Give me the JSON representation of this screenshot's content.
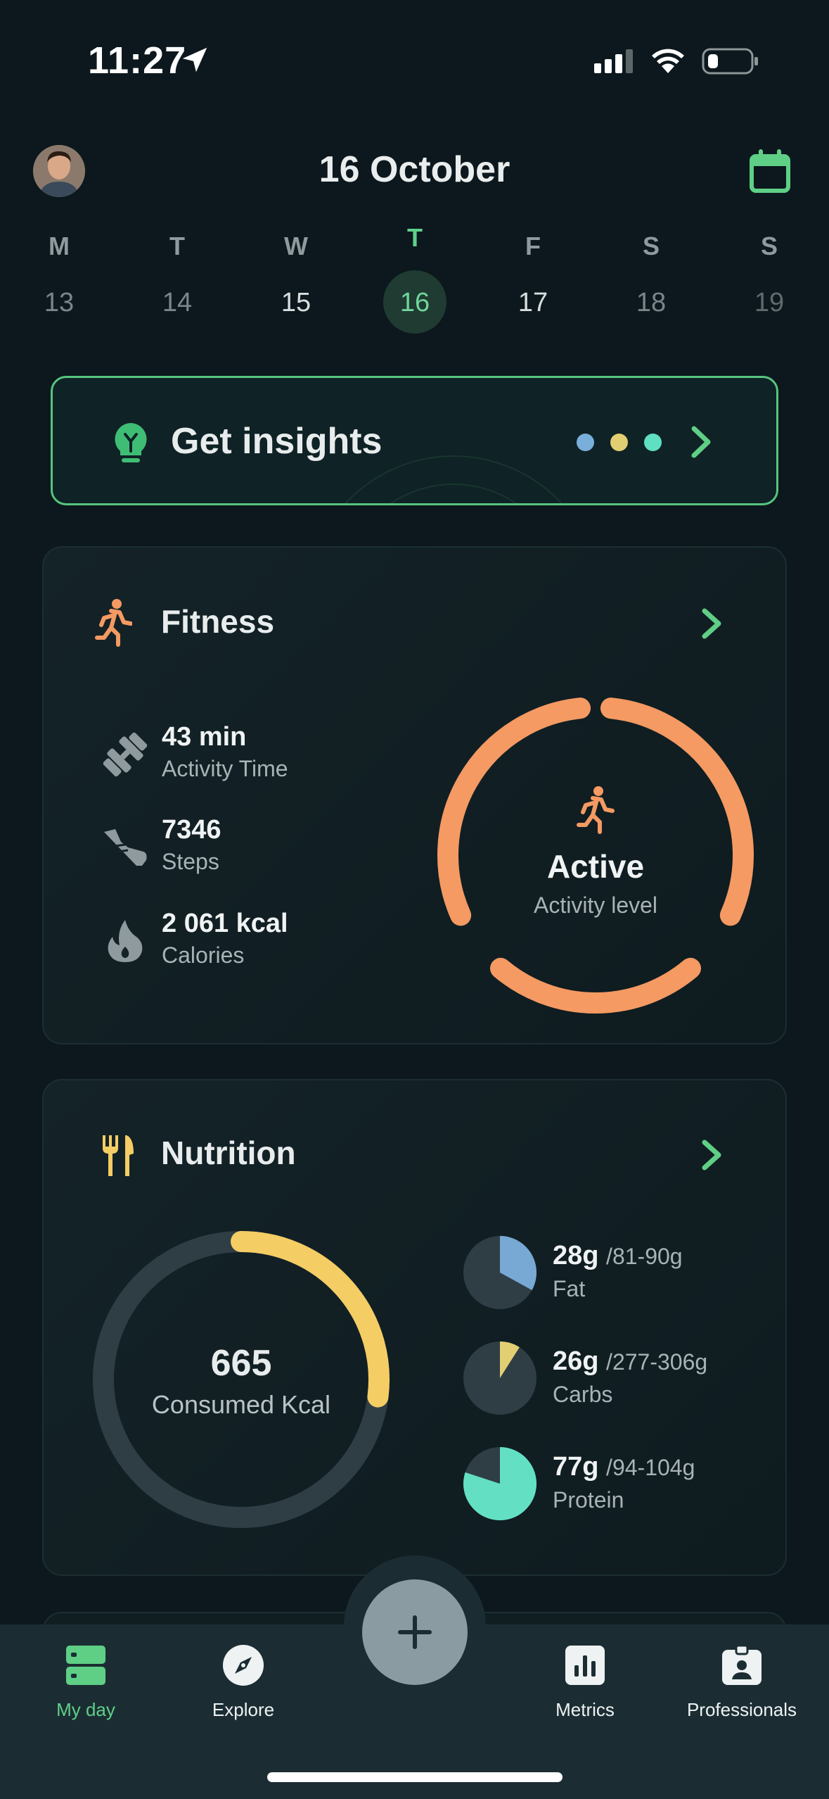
{
  "status_bar": {
    "time": "11:27"
  },
  "header": {
    "title": "16 October",
    "avatar_icon": "user-avatar",
    "calendar_icon": "calendar-icon"
  },
  "week": [
    {
      "letter": "M",
      "date": "13"
    },
    {
      "letter": "T",
      "date": "14"
    },
    {
      "letter": "W",
      "date": "15"
    },
    {
      "letter": "T",
      "date": "16",
      "current": true
    },
    {
      "letter": "F",
      "date": "17"
    },
    {
      "letter": "S",
      "date": "18"
    },
    {
      "letter": "S",
      "date": "19"
    }
  ],
  "insights": {
    "label": "Get insights",
    "dot_colors": [
      "#7aaedb",
      "#e2cf72",
      "#5fe0c2"
    ]
  },
  "fitness": {
    "title": "Fitness",
    "stats": [
      {
        "value": "43 min",
        "label": "Activity Time",
        "icon": "dumbbell-icon"
      },
      {
        "value": "7346",
        "label": "Steps",
        "icon": "shoe-icon"
      },
      {
        "value": "2 061 kcal",
        "label": "Calories",
        "icon": "flame-icon"
      }
    ],
    "level": "Active",
    "level_label": "Activity level",
    "accent": "#f49a62"
  },
  "nutrition": {
    "title": "Nutrition",
    "consumed": "665",
    "consumed_label": "Consumed Kcal",
    "consumed_fraction": 0.27,
    "accent": "#f5cd65",
    "macros": [
      {
        "value": "28g",
        "target": "/81-90g",
        "label": "Fat",
        "fraction": 0.33,
        "color": "#78a8d4"
      },
      {
        "value": "26g",
        "target": "/277-306g",
        "label": "Carbs",
        "fraction": 0.09,
        "color": "#e2cf72"
      },
      {
        "value": "77g",
        "target": "/94-104g",
        "label": "Protein",
        "fraction": 0.8,
        "color": "#63e0c3"
      }
    ]
  },
  "tabbar": {
    "items": [
      {
        "label": "My day",
        "icon": "my-day-icon",
        "active": true
      },
      {
        "label": "Explore",
        "icon": "compass-icon"
      },
      {
        "label": "Metrics",
        "icon": "bar-chart-icon"
      },
      {
        "label": "Professionals",
        "icon": "id-badge-icon"
      }
    ],
    "fab_icon": "plus-icon"
  }
}
